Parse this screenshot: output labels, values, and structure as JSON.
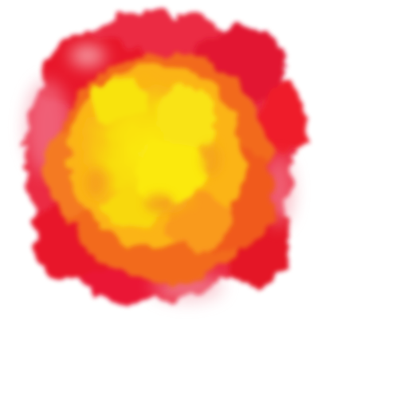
{
  "sprite": {
    "icon": "explosion-fireball-icon",
    "colors": {
      "outer": "#e8132a",
      "mid": "#f26a1b",
      "inner": "#fbb416",
      "core": "#f8e30e",
      "background": "#ffffff"
    }
  }
}
